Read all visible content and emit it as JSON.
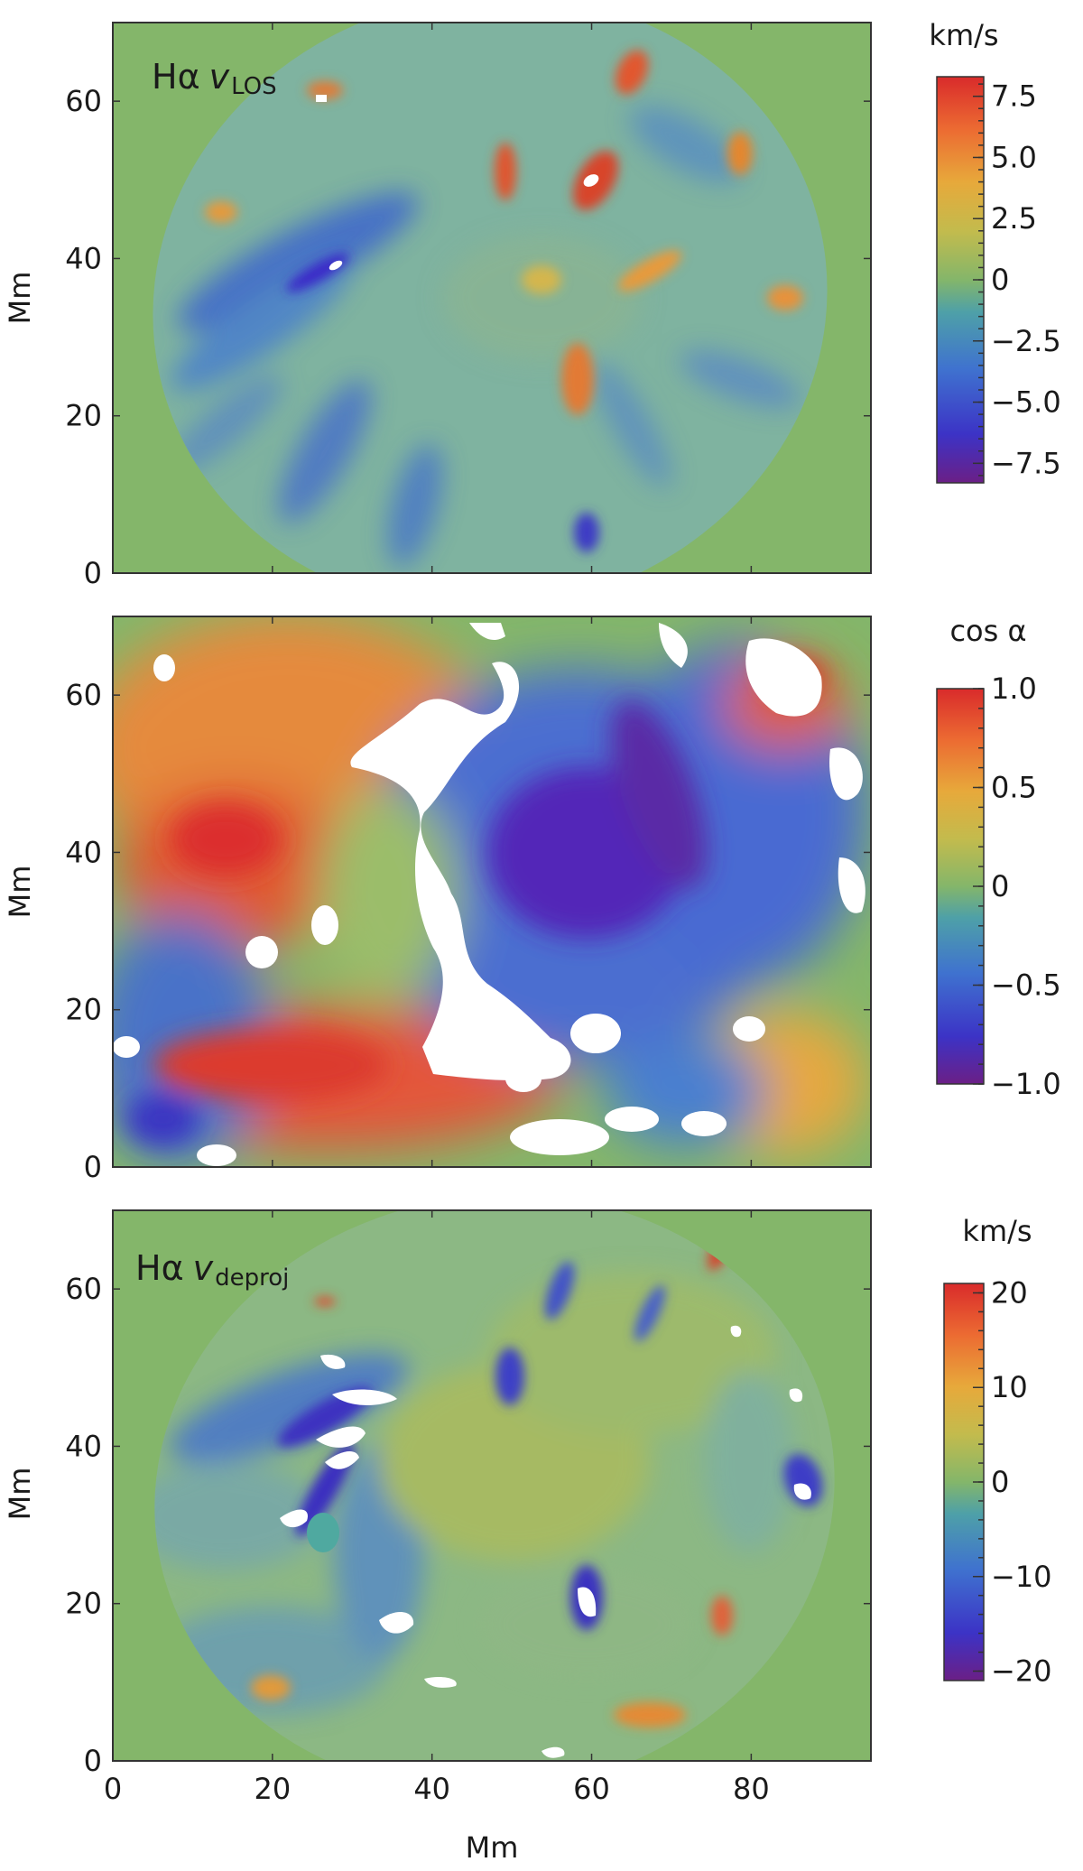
{
  "figure": {
    "x_label": "Mm",
    "y_label": "Mm",
    "background_color": "#84b66a"
  },
  "chart_data": [
    {
      "type": "heatmap",
      "panel_label": "Hα",
      "panel_label_var": "v",
      "panel_label_sub": "LOS",
      "ylabel": "Mm",
      "xlabel": "",
      "xlim": [
        0,
        95
      ],
      "ylim": [
        0,
        70
      ],
      "x_ticks": [
        0,
        20,
        40,
        60,
        80
      ],
      "y_ticks": [
        0,
        20,
        40,
        60
      ],
      "y_tick_labels": [
        "0",
        "20",
        "40",
        "60"
      ],
      "x_tick_labels_shown": false,
      "colorbar": {
        "title": "km/s",
        "range": [
          -8.3,
          8.3
        ],
        "ticks": [
          7.5,
          5.0,
          2.5,
          0,
          -2.5,
          -5.0,
          -7.5
        ],
        "tick_labels": [
          "7.5",
          "5.0",
          "2.5",
          "0",
          "−2.5",
          "−5.0",
          "−7.5"
        ]
      },
      "field_of_view": "ellipse",
      "outside_fov_color": "#84b66a"
    },
    {
      "type": "heatmap",
      "panel_label": "",
      "ylabel": "Mm",
      "xlabel": "",
      "xlim": [
        0,
        95
      ],
      "ylim": [
        0,
        70
      ],
      "x_ticks": [
        0,
        20,
        40,
        60,
        80
      ],
      "y_ticks": [
        0,
        20,
        40,
        60
      ],
      "y_tick_labels": [
        "0",
        "20",
        "40",
        "60"
      ],
      "x_tick_labels_shown": false,
      "colorbar": {
        "title": "cos α",
        "range": [
          -1.0,
          1.0
        ],
        "ticks": [
          1.0,
          0.5,
          0,
          -0.5,
          -1.0
        ],
        "tick_labels": [
          "1.0",
          "0.5",
          "0",
          "−0.5",
          "−1.0"
        ]
      },
      "field_of_view": "full",
      "masked_color": "#ffffff"
    },
    {
      "type": "heatmap",
      "panel_label": "Hα",
      "panel_label_var": "v",
      "panel_label_sub": "deproj",
      "ylabel": "Mm",
      "xlabel": "Mm",
      "xlim": [
        0,
        95
      ],
      "ylim": [
        0,
        70
      ],
      "x_ticks": [
        0,
        20,
        40,
        60,
        80
      ],
      "x_tick_labels": [
        "0",
        "20",
        "40",
        "60",
        "80"
      ],
      "y_ticks": [
        0,
        20,
        40,
        60
      ],
      "y_tick_labels": [
        "0",
        "20",
        "40",
        "60"
      ],
      "x_tick_labels_shown": true,
      "colorbar": {
        "title": "km/s",
        "range": [
          -21,
          21
        ],
        "ticks": [
          20,
          10,
          0,
          -10,
          -20
        ],
        "tick_labels": [
          "20",
          "10",
          "0",
          "−10",
          "−20"
        ]
      },
      "field_of_view": "ellipse",
      "outside_fov_color": "#84b66a",
      "masked_color": "#ffffff"
    }
  ]
}
